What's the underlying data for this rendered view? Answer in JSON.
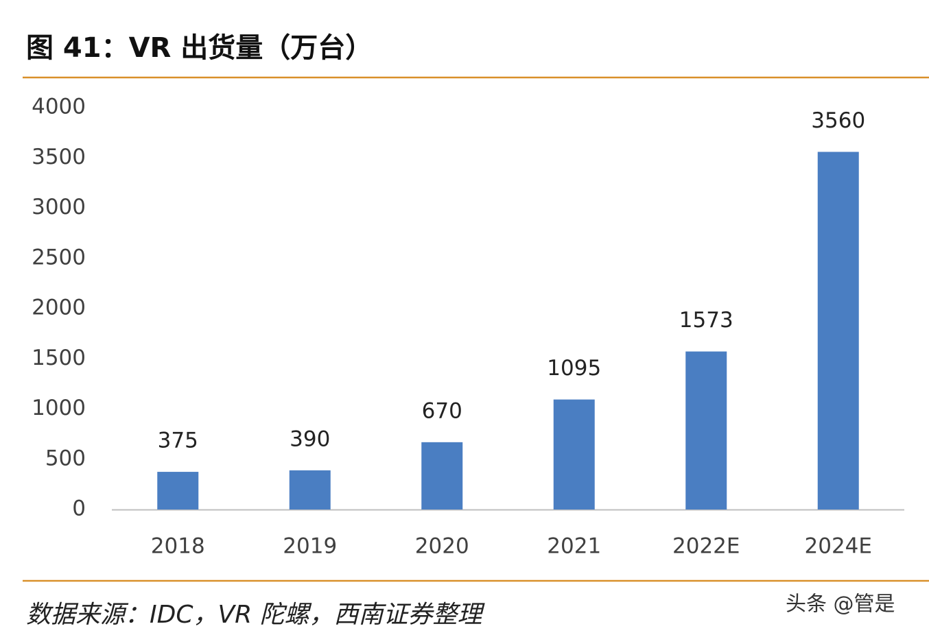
{
  "chart_data": {
    "type": "bar",
    "title": "图 41：VR 出货量（万台）",
    "categories": [
      "2018",
      "2019",
      "2020",
      "2021",
      "2022E",
      "2024E"
    ],
    "values": [
      375,
      390,
      670,
      1095,
      1573,
      3560
    ],
    "color": "#4a7ec2",
    "ylim": [
      0,
      4000
    ],
    "yticks": [
      0,
      500,
      1000,
      1500,
      2000,
      2500,
      3000,
      3500,
      4000
    ],
    "grid": false,
    "source": "数据来源：IDC，VR 陀螺，西南证券整理",
    "watermark": "头条 @管是"
  }
}
